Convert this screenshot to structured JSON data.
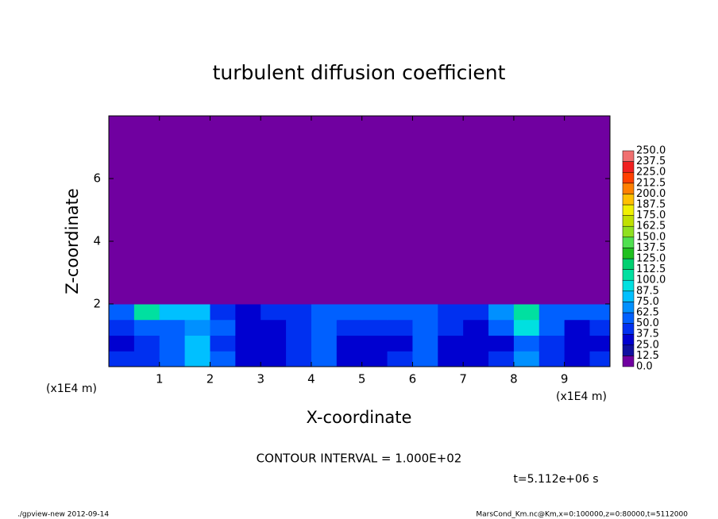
{
  "chart_data": {
    "type": "heatmap",
    "title": "turbulent diffusion coefficient",
    "x_label": "X-coordinate",
    "y_label": "Z-coordinate",
    "x_unit": "(x1E4 m)",
    "y_unit": "(x1E4 m)",
    "x": [
      0.25,
      0.75,
      1.25,
      1.75,
      2.25,
      2.75,
      3.25,
      3.75,
      4.25,
      4.75,
      5.25,
      5.75,
      6.25,
      6.75,
      7.25,
      7.75,
      8.25,
      8.75,
      9.25,
      9.75
    ],
    "z": [
      0.25,
      0.75,
      1.25,
      1.75,
      2.25,
      2.75,
      3.25,
      3.75,
      4.25,
      4.75,
      5.25,
      5.75,
      6.25,
      6.75,
      7.25,
      7.75
    ],
    "values": [
      [
        40,
        45,
        60,
        80,
        50,
        30,
        30,
        45,
        60,
        35,
        35,
        40,
        55,
        35,
        30,
        40,
        65,
        45,
        35,
        40
      ],
      [
        35,
        40,
        55,
        75,
        45,
        25,
        25,
        40,
        55,
        30,
        30,
        35,
        50,
        30,
        25,
        35,
        60,
        40,
        30,
        35
      ],
      [
        45,
        50,
        60,
        70,
        50,
        30,
        30,
        40,
        60,
        45,
        40,
        45,
        55,
        40,
        35,
        50,
        90,
        60,
        35,
        40
      ],
      [
        60,
        110,
        75,
        80,
        45,
        35,
        40,
        45,
        55,
        55,
        50,
        55,
        55,
        45,
        45,
        70,
        110,
        60,
        50,
        55
      ],
      [
        0,
        0,
        0,
        0,
        0,
        0,
        0,
        0,
        0,
        0,
        0,
        0,
        0,
        0,
        0,
        0,
        0,
        0,
        0,
        0
      ],
      [
        0,
        0,
        0,
        0,
        0,
        0,
        0,
        0,
        0,
        0,
        0,
        0,
        0,
        0,
        0,
        0,
        0,
        0,
        0,
        0
      ],
      [
        0,
        0,
        0,
        0,
        0,
        0,
        0,
        0,
        0,
        0,
        0,
        0,
        0,
        0,
        0,
        0,
        0,
        0,
        0,
        0
      ],
      [
        0,
        0,
        0,
        0,
        0,
        0,
        0,
        0,
        0,
        0,
        0,
        0,
        0,
        0,
        0,
        0,
        0,
        0,
        0,
        0
      ],
      [
        0,
        0,
        0,
        0,
        0,
        0,
        0,
        0,
        0,
        0,
        0,
        0,
        0,
        0,
        0,
        0,
        0,
        0,
        0,
        0
      ],
      [
        0,
        0,
        0,
        0,
        0,
        0,
        0,
        0,
        0,
        0,
        0,
        0,
        0,
        0,
        0,
        0,
        0,
        0,
        0,
        0
      ],
      [
        0,
        0,
        0,
        0,
        0,
        0,
        0,
        0,
        0,
        0,
        0,
        0,
        0,
        0,
        0,
        0,
        0,
        0,
        0,
        0
      ],
      [
        0,
        0,
        0,
        0,
        0,
        0,
        0,
        0,
        0,
        0,
        0,
        0,
        0,
        0,
        0,
        0,
        0,
        0,
        0,
        0
      ],
      [
        0,
        0,
        0,
        0,
        0,
        0,
        0,
        0,
        0,
        0,
        0,
        0,
        0,
        0,
        0,
        0,
        0,
        0,
        0,
        0
      ],
      [
        0,
        0,
        0,
        0,
        0,
        0,
        0,
        0,
        0,
        0,
        0,
        0,
        0,
        0,
        0,
        0,
        0,
        0,
        0,
        0
      ],
      [
        0,
        0,
        0,
        0,
        0,
        0,
        0,
        0,
        0,
        0,
        0,
        0,
        0,
        0,
        0,
        0,
        0,
        0,
        0,
        0
      ],
      [
        0,
        0,
        0,
        0,
        0,
        0,
        0,
        0,
        0,
        0,
        0,
        0,
        0,
        0,
        0,
        0,
        0,
        0,
        0,
        0
      ]
    ],
    "xlim": [
      0,
      9.9
    ],
    "ylim": [
      0,
      8
    ],
    "xticks": [
      1,
      2,
      3,
      4,
      5,
      6,
      7,
      8,
      9
    ],
    "yticks": [
      2,
      4,
      6
    ],
    "colorbar": {
      "ticks": [
        {
          "value": 0,
          "label": "0.0"
        },
        12.5,
        {
          "value": 25,
          "label": "25.0"
        },
        37.5,
        {
          "value": 50,
          "label": "50.0"
        },
        62.5,
        {
          "value": 75,
          "label": "75.0"
        },
        87.5,
        {
          "value": 100,
          "label": "100.0"
        },
        112.5,
        {
          "value": 125,
          "label": "125.0"
        },
        137.5,
        {
          "value": 150,
          "label": "150.0"
        },
        162.5,
        {
          "value": 175,
          "label": "175.0"
        },
        187.5,
        {
          "value": 200,
          "label": "200.0"
        },
        212.5,
        {
          "value": 225,
          "label": "225.0"
        },
        237.5,
        {
          "value": 250,
          "label": "250.0"
        }
      ],
      "colors": [
        "#7000a0",
        "#1010a0",
        "#0000d0",
        "#0030f0",
        "#0060ff",
        "#0090ff",
        "#00c0ff",
        "#00e0e0",
        "#00e0a0",
        "#00d070",
        "#20c020",
        "#50e050",
        "#90e020",
        "#c0e000",
        "#f0f000",
        "#ffc000",
        "#ff8000",
        "#ff4000",
        "#f02020",
        "#f07070"
      ]
    },
    "annotation": "CONTOUR INTERVAL = 1.000E+02",
    "time": "t=5.112e+06 s",
    "footer_left": "./gpview-new  2012-09-14",
    "footer_right": "MarsCond_Km.nc@Km,x=0:100000,z=0:80000,t=5112000"
  }
}
